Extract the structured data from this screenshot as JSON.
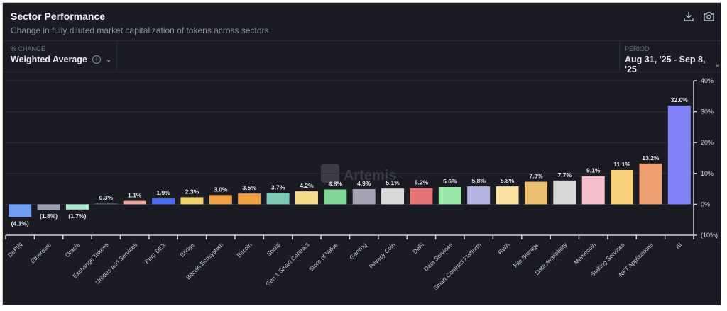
{
  "header": {
    "title": "Sector Performance",
    "subtitle": "Change in fully diluted market capitalization of tokens across sectors"
  },
  "toolbar": {
    "download_icon": "download-icon",
    "screenshot_icon": "camera-icon"
  },
  "controls": {
    "metric": {
      "label": "% CHANGE",
      "value": "Weighted Average",
      "info_icon": "info-icon"
    },
    "period": {
      "label": "PERIOD",
      "value": "Aug 31, '25 - Sep 8, '25"
    }
  },
  "watermark": "Artemis",
  "chart_data": {
    "type": "bar",
    "title": "Sector Performance",
    "categories": [
      "DePIN",
      "Ethereum",
      "Oracle",
      "Exchange Tokens",
      "Utilities and Services",
      "Perp DEX",
      "Bridge",
      "Bitcoin Ecosystem",
      "Bitcoin",
      "Social",
      "Gen 1 Smart Contract",
      "Store of Value",
      "Gaming",
      "Privacy Coin",
      "DeFi",
      "Data Services",
      "Smart Contract Platform",
      "RWA",
      "File Storage",
      "Data Availability",
      "Memecoin",
      "Staking Services",
      "NFT Applications",
      "AI"
    ],
    "values": [
      -4.1,
      -1.8,
      -1.7,
      0.3,
      1.1,
      1.9,
      2.3,
      3.0,
      3.5,
      3.7,
      4.2,
      4.8,
      4.9,
      5.1,
      5.2,
      5.6,
      5.8,
      5.8,
      7.3,
      7.7,
      9.1,
      11.1,
      13.2,
      32.0
    ],
    "data_labels": [
      "(4.1%)",
      "(1.8%)",
      "(1.7%)",
      "0.3%",
      "1.1%",
      "1.9%",
      "2.3%",
      "3.0%",
      "3.5%",
      "3.7%",
      "4.2%",
      "4.8%",
      "4.9%",
      "5.1%",
      "5.2%",
      "5.6%",
      "5.8%",
      "5.8%",
      "7.3%",
      "7.7%",
      "9.1%",
      "11.1%",
      "13.2%",
      "32.0%"
    ],
    "colors": [
      "#6f9ff5",
      "#9b9db2",
      "#a9e8cf",
      "#3d5c57",
      "#f2a59b",
      "#4a6ef0",
      "#f1d06f",
      "#f0a040",
      "#f0a040",
      "#7fcab6",
      "#f8da8c",
      "#7fd695",
      "#a4a4b4",
      "#d9d9d9",
      "#e57474",
      "#9ae7a7",
      "#b4b4e0",
      "#fbe1a2",
      "#eec172",
      "#d7d7d7",
      "#f5c0cb",
      "#f8d27b",
      "#f0a172",
      "#8282f8"
    ],
    "ylim": [
      -10,
      40
    ],
    "yticks": [
      40,
      30,
      20,
      10,
      0,
      -10
    ],
    "ytick_labels": [
      "40%",
      "30%",
      "20%",
      "10%",
      "0%",
      "(10%)"
    ],
    "yaxis_position": "right",
    "grid": true
  }
}
